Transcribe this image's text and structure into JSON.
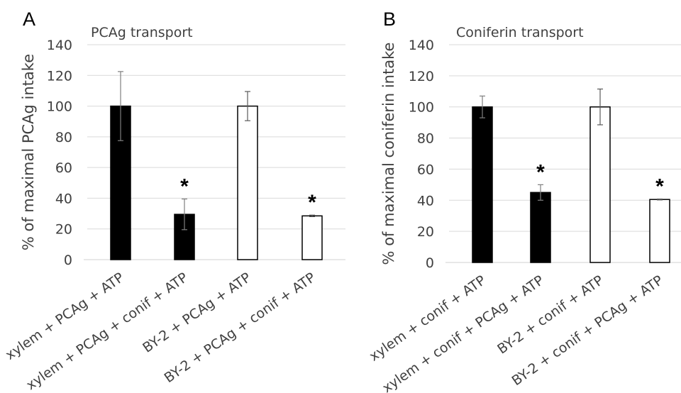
{
  "chart_data": [
    {
      "type": "bar",
      "panel_letter": "A",
      "title": "PCAg transport",
      "ylabel": "% of maximal PCAg intake",
      "xlabel": "",
      "ylim": [
        0,
        140
      ],
      "yticks": [
        0,
        20,
        40,
        60,
        80,
        100,
        120,
        140
      ],
      "grid": true,
      "categories": [
        "xylem + PCAg + ATP",
        "xylem + PCAg + conif + ATP",
        "BY-2 + PCAg + ATP",
        "BY-2 + PCAg + conif + ATP"
      ],
      "values": [
        100,
        29.5,
        100,
        28.5
      ],
      "errors": [
        22.5,
        10,
        9.5,
        0.5
      ],
      "fills": [
        "#000000",
        "#000000",
        "#ffffff",
        "#ffffff"
      ],
      "significance": [
        "",
        "*",
        "",
        "*"
      ]
    },
    {
      "type": "bar",
      "panel_letter": "B",
      "title": "Coniferin transport",
      "ylabel": "% of maximal coniferin intake",
      "xlabel": "",
      "ylim": [
        0,
        140
      ],
      "yticks": [
        0,
        20,
        40,
        60,
        80,
        100,
        120,
        140
      ],
      "grid": true,
      "categories": [
        "xylem + conif + ATP",
        "xylem + conif + PCAg + ATP",
        "BY-2 + conif + ATP",
        "BY-2 + conif + PCAg + ATP"
      ],
      "values": [
        100,
        45,
        100,
        40.5
      ],
      "errors": [
        7,
        5,
        11.5,
        0.3
      ],
      "fills": [
        "#000000",
        "#000000",
        "#ffffff",
        "#ffffff"
      ],
      "significance": [
        "",
        "*",
        "",
        "*"
      ]
    }
  ]
}
